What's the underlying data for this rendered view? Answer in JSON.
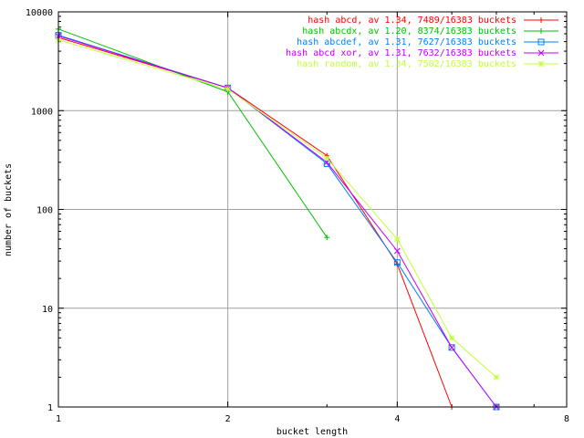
{
  "chart_data": {
    "type": "line",
    "title": "",
    "xlabel": "bucket length",
    "ylabel": "number of buckets",
    "xscale": "log2",
    "yscale": "log10",
    "xlim": [
      1,
      8
    ],
    "ylim": [
      1,
      10000
    ],
    "grid": true,
    "legend_position": "top-right",
    "x_ticks": [
      {
        "value": 1,
        "label": "1"
      },
      {
        "value": 2,
        "label": "2"
      },
      {
        "value": 4,
        "label": "4"
      },
      {
        "value": 8,
        "label": "8"
      }
    ],
    "y_ticks": [
      {
        "value": 1,
        "label": "1"
      },
      {
        "value": 10,
        "label": "10"
      },
      {
        "value": 100,
        "label": "100"
      },
      {
        "value": 1000,
        "label": "1000"
      },
      {
        "value": 10000,
        "label": "10000"
      }
    ],
    "series": [
      {
        "name": "hash abcd, av 1.34, 7489/16383 buckets",
        "color": "#ff0000",
        "marker": "plus",
        "x": [
          1,
          2,
          3,
          4,
          5
        ],
        "y": [
          5500,
          1700,
          350,
          28,
          1
        ]
      },
      {
        "name": "hash abcdx, av 1.20, 8374/16383 buckets",
        "color": "#00c000",
        "marker": "cross",
        "x": [
          1,
          2,
          3
        ],
        "y": [
          6700,
          1550,
          52
        ]
      },
      {
        "name": "hash abcdef, av 1.31, 7627/16383 buckets",
        "color": "#0080ff",
        "marker": "square",
        "x": [
          1,
          2,
          3,
          4,
          5,
          6
        ],
        "y": [
          5800,
          1700,
          290,
          29,
          4,
          1
        ]
      },
      {
        "name": "hash abcd xor, av 1.31, 7632/16383 buckets",
        "color": "#c000ff",
        "marker": "x",
        "x": [
          1,
          2,
          3,
          4,
          5,
          6
        ],
        "y": [
          5700,
          1700,
          300,
          38,
          4,
          1
        ]
      },
      {
        "name": "hash random, av 1.34, 7502/16383 buckets",
        "color": "#c0ff40",
        "marker": "star",
        "x": [
          1,
          2,
          3,
          4,
          5,
          6
        ],
        "y": [
          5200,
          1650,
          330,
          50,
          5,
          2
        ]
      }
    ]
  }
}
